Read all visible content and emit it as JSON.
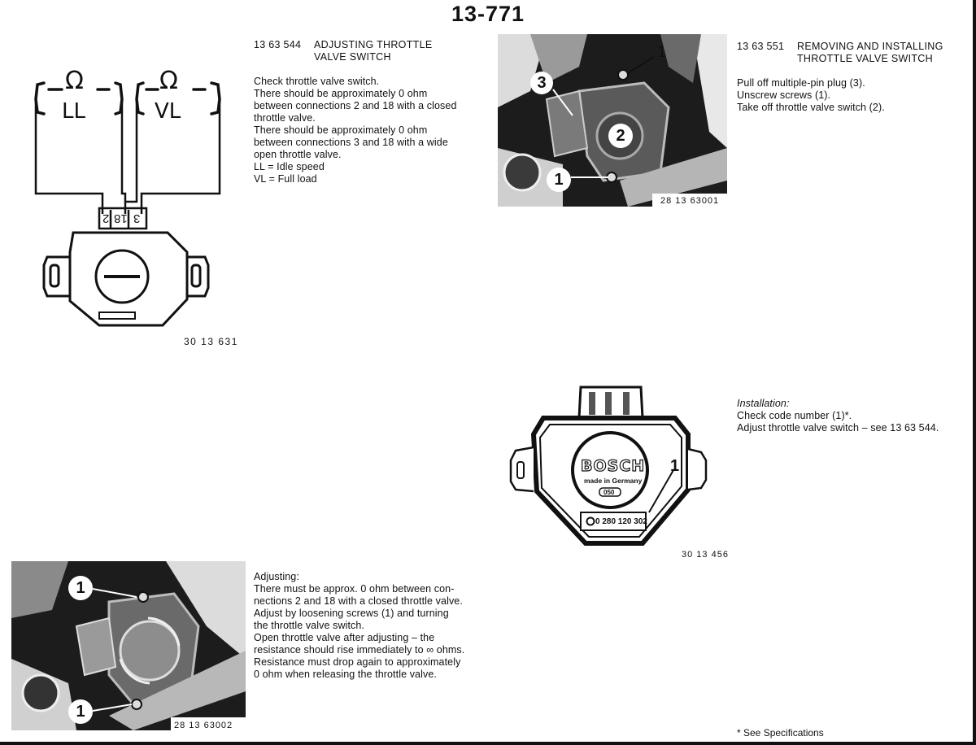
{
  "page_number": "13-771",
  "sections": {
    "adjusting": {
      "code": "13 63 544",
      "title_line1": "ADJUSTING THROTTLE",
      "title_line2": "VALVE SWITCH",
      "lines": [
        "Check throttle valve switch.",
        "There should be approximately 0 ohm",
        "between connections 2 and 18 with a closed",
        "throttle valve.",
        "There should be approximately 0 ohm",
        "between connections 3 and 18 with a wide",
        "open throttle valve.",
        "LL =  Idle speed",
        "VL =  Full load"
      ]
    },
    "removing": {
      "code": "13 63 551",
      "title_line1": "REMOVING AND INSTALLING",
      "title_line2": "THROTTLE VALVE SWITCH",
      "lines": [
        "Pull off multiple-pin plug (3).",
        "Unscrew screws (1).",
        "Take off throttle valve switch (2)."
      ]
    },
    "installation": {
      "heading": "Installation:",
      "lines": [
        "Check code number (1)*.",
        "Adjust throttle valve switch – see 13 63 544."
      ]
    },
    "adjusting_procedure": {
      "heading": "Adjusting:",
      "lines": [
        "There must be approx. 0 ohm between con-",
        "nections 2 and 18 with a closed throttle valve.",
        "Adjust by loosening screws (1) and turning",
        "the throttle valve switch.",
        "Open throttle valve after adjusting – the",
        "resistance should rise immediately to ∞ ohms.",
        "Resistance must drop again to approximately",
        "0 ohm when releasing the throttle valve."
      ]
    }
  },
  "figures": {
    "wiring": {
      "code": "30 13 631",
      "ohm_symbol": "Ω",
      "label_ll": "LL",
      "label_vl": "VL",
      "pin_2": "2",
      "pin_18": "18",
      "pin_3": "3"
    },
    "photo_top": {
      "code": "28 13 63001",
      "callout_1a": "1",
      "callout_3": "3",
      "callout_2": "2",
      "callout_1b": "1"
    },
    "bosch": {
      "code": "30 13 456",
      "brand": "BOSCH",
      "made_in": "made in Germany",
      "badge": "050",
      "part_number": "0 280 120 302",
      "callout_1": "1"
    },
    "photo_bottom": {
      "code": "28 13 63002",
      "callout_1a": "1",
      "callout_1b": "1"
    }
  },
  "footnote": "* See Specifications"
}
